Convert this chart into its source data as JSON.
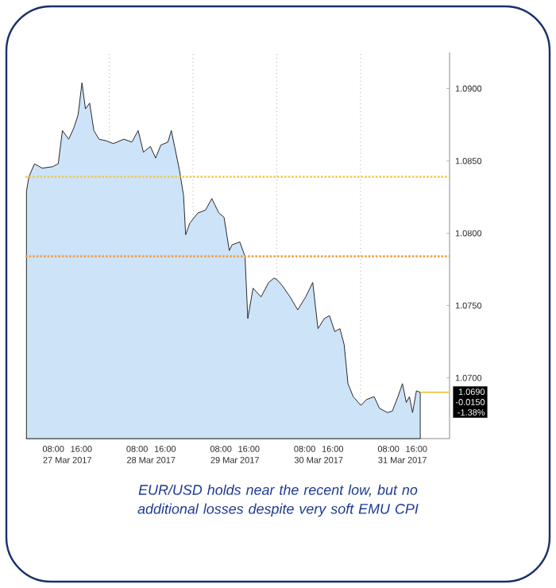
{
  "chart_data": {
    "type": "area",
    "title": "EUR/USD holds near the recent low, but no additional losses despite very soft EMU CPI",
    "color": "#cde3f8",
    "x": [
      "2017-03-27T00:18",
      "2017-03-27T01:00",
      "2017-03-27T02:36",
      "2017-03-27T04:48",
      "2017-03-27T07:48",
      "2017-03-27T09:24",
      "2017-03-27T10:36",
      "2017-03-27T12:24",
      "2017-03-27T13:54",
      "2017-03-27T15:06",
      "2017-03-27T16:12",
      "2017-03-27T17:12",
      "2017-03-27T18:24",
      "2017-03-27T19:36",
      "2017-03-27T21:06",
      "2017-03-27T23:00",
      "2017-03-28T01:12",
      "2017-03-28T04:12",
      "2017-03-28T06:30",
      "2017-03-28T08:18",
      "2017-03-28T09:48",
      "2017-03-28T11:48",
      "2017-03-28T13:18",
      "2017-03-28T14:48",
      "2017-03-28T16:48",
      "2017-03-28T17:48",
      "2017-03-28T18:54",
      "2017-03-28T20:06",
      "2017-03-28T21:18",
      "2017-03-28T21:54",
      "2017-03-28T23:06",
      "2017-03-29T01:24",
      "2017-03-29T03:36",
      "2017-03-29T05:24",
      "2017-03-29T07:24",
      "2017-03-29T08:54",
      "2017-03-29T10:24",
      "2017-03-29T11:12",
      "2017-03-29T13:24",
      "2017-03-29T14:54",
      "2017-03-29T15:42",
      "2017-03-29T17:12",
      "2017-03-29T19:30",
      "2017-03-29T21:42",
      "2017-03-29T23:12",
      "2017-03-30T00:00",
      "2017-03-30T01:30",
      "2017-03-30T03:48",
      "2017-03-30T06:00",
      "2017-03-30T08:18",
      "2017-03-30T10:18",
      "2017-03-30T11:48",
      "2017-03-30T13:36",
      "2017-03-30T15:06",
      "2017-03-30T16:36",
      "2017-03-30T18:06",
      "2017-03-30T19:18",
      "2017-03-30T20:24",
      "2017-03-30T21:54",
      "2017-03-31T00:06",
      "2017-03-31T01:42",
      "2017-03-31T03:54",
      "2017-03-31T05:24",
      "2017-03-31T07:42",
      "2017-03-31T09:06",
      "2017-03-31T10:42",
      "2017-03-31T12:00",
      "2017-03-31T13:06",
      "2017-03-31T14:00",
      "2017-03-31T14:54",
      "2017-03-31T16:00",
      "2017-03-31T17:06"
    ],
    "values": [
      1.0829,
      1.0839,
      1.0848,
      1.0845,
      1.0846,
      1.0848,
      1.0871,
      1.0865,
      1.0873,
      1.0882,
      1.0904,
      1.0886,
      1.089,
      1.0871,
      1.0865,
      1.0864,
      1.0862,
      1.0865,
      1.0863,
      1.0871,
      1.0856,
      1.086,
      1.0852,
      1.0861,
      1.0863,
      1.0871,
      1.0858,
      1.0844,
      1.0826,
      1.0799,
      1.0807,
      1.0814,
      1.0816,
      1.0824,
      1.0814,
      1.0811,
      1.0788,
      1.0792,
      1.0794,
      1.0784,
      1.0741,
      1.0762,
      1.0756,
      1.0766,
      1.0769,
      1.0768,
      1.0764,
      1.0756,
      1.0747,
      1.0756,
      1.0766,
      1.0734,
      1.0741,
      1.0743,
      1.0732,
      1.0734,
      1.0723,
      1.0696,
      1.0687,
      1.0681,
      1.0685,
      1.0687,
      1.0679,
      1.0676,
      1.0677,
      1.0687,
      1.0696,
      1.0683,
      1.0687,
      1.0676,
      1.0691,
      1.069
    ],
    "xlim": [
      "2017-03-27T00:00",
      "2017-04-01T01:30"
    ],
    "ylim": [
      1.0658,
      1.0925
    ],
    "xticks": [
      {
        "value": "2017-03-27T08:00",
        "label": "08:00"
      },
      {
        "value": "2017-03-27T16:00",
        "label": "16:00"
      },
      {
        "value": "2017-03-28T00:00",
        "label": null
      },
      {
        "value": "2017-03-28T08:00",
        "label": "08:00"
      },
      {
        "value": "2017-03-28T16:00",
        "label": "16:00"
      },
      {
        "value": "2017-03-29T00:00",
        "label": null
      },
      {
        "value": "2017-03-29T08:00",
        "label": "08:00"
      },
      {
        "value": "2017-03-29T16:00",
        "label": "16:00"
      },
      {
        "value": "2017-03-30T00:00",
        "label": null
      },
      {
        "value": "2017-03-30T08:00",
        "label": "08:00"
      },
      {
        "value": "2017-03-30T16:00",
        "label": "16:00"
      },
      {
        "value": "2017-03-31T00:00",
        "label": null
      },
      {
        "value": "2017-03-31T08:00",
        "label": "08:00"
      },
      {
        "value": "2017-03-31T16:00",
        "label": "16:00"
      }
    ],
    "x2lim": [
      "2017-03-27T00:00",
      "2017-04-01T01:30"
    ],
    "x2ticks": [
      {
        "value": "2017-03-27T12:00",
        "label": "27 Mar 2017"
      },
      {
        "value": "2017-03-28T12:00",
        "label": "28 Mar 2017"
      },
      {
        "value": "2017-03-29T12:00",
        "label": "29 Mar 2017"
      },
      {
        "value": "2017-03-30T12:00",
        "label": "30 Mar 2017"
      },
      {
        "value": "2017-03-31T12:00",
        "label": "31 Mar 2017"
      }
    ],
    "yticks": [
      {
        "value": 1.07,
        "label": "1.0700"
      },
      {
        "value": 1.075,
        "label": "1.0750"
      },
      {
        "value": 1.08,
        "label": "1.0800"
      },
      {
        "value": 1.085,
        "label": "1.0850"
      },
      {
        "value": 1.09,
        "label": "1.0900"
      }
    ],
    "grid": "x",
    "ref_lines": [
      {
        "axis": "y",
        "value": 1.0839,
        "color": "#f2c94c",
        "line_style": "dotted"
      },
      {
        "axis": "y",
        "value": 1.0784,
        "color": "#f0a24a",
        "line_style": "dotted"
      }
    ],
    "annotations": [
      {
        "text": "1.0690",
        "x": "2017-03-31T17:06",
        "y": 1.069
      },
      "-0.0150",
      "-1.38%"
    ]
  }
}
